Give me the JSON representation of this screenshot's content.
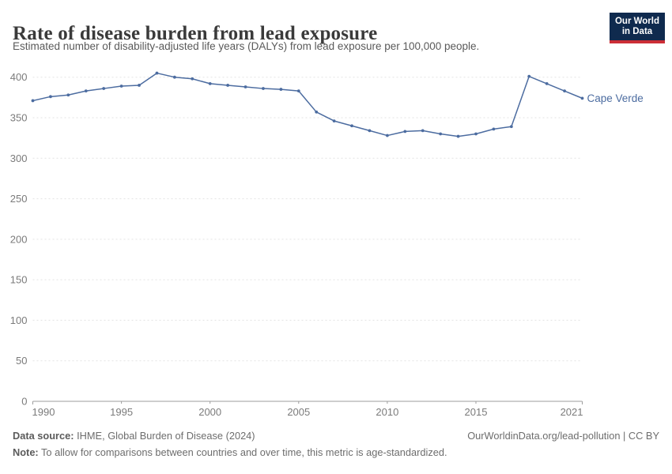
{
  "header": {
    "title": "Rate of disease burden from lead exposure",
    "subtitle": "Estimated number of disability-adjusted life years (DALYs) from lead exposure per 100,000 people."
  },
  "logo": {
    "line1": "Our World",
    "line2": "in Data",
    "bg_color": "#0f2a4e",
    "accent_color": "#cc2e37"
  },
  "chart_data": {
    "type": "line",
    "title": "Rate of disease burden from lead exposure",
    "xlabel": "",
    "ylabel": "",
    "grid": true,
    "legend_position": "end-of-line",
    "xlim": [
      1990,
      2021
    ],
    "ylim": [
      0,
      400
    ],
    "x_ticks": [
      1990,
      1995,
      2000,
      2005,
      2010,
      2015,
      2021
    ],
    "y_ticks": [
      0,
      50,
      100,
      150,
      200,
      250,
      300,
      350,
      400
    ],
    "x": [
      1990,
      1991,
      1992,
      1993,
      1994,
      1995,
      1996,
      1997,
      1998,
      1999,
      2000,
      2001,
      2002,
      2003,
      2004,
      2005,
      2006,
      2007,
      2008,
      2009,
      2010,
      2011,
      2012,
      2013,
      2014,
      2015,
      2016,
      2017,
      2018,
      2019,
      2020,
      2021
    ],
    "series": [
      {
        "name": "Cape Verde",
        "color": "#4c6ca0",
        "values": [
          371,
          376,
          378,
          383,
          386,
          389,
          390,
          405,
          400,
          398,
          392,
          390,
          388,
          386,
          385,
          383,
          357,
          346,
          340,
          334,
          328,
          333,
          334,
          330,
          327,
          330,
          336,
          339,
          401,
          392,
          383,
          374
        ]
      }
    ],
    "style": {
      "gridline_color": "#e3e3e3",
      "axis_color": "#9e9e9e",
      "tick_label_color": "#7b7b7b"
    }
  },
  "footer": {
    "datasource_label": "Data source:",
    "datasource_text": " IHME, Global Burden of Disease (2024)",
    "link_text": "OurWorldinData.org/lead-pollution | CC BY",
    "note_label": "Note:",
    "note_text": " To allow for comparisons between countries and over time, this metric is age-standardized."
  }
}
